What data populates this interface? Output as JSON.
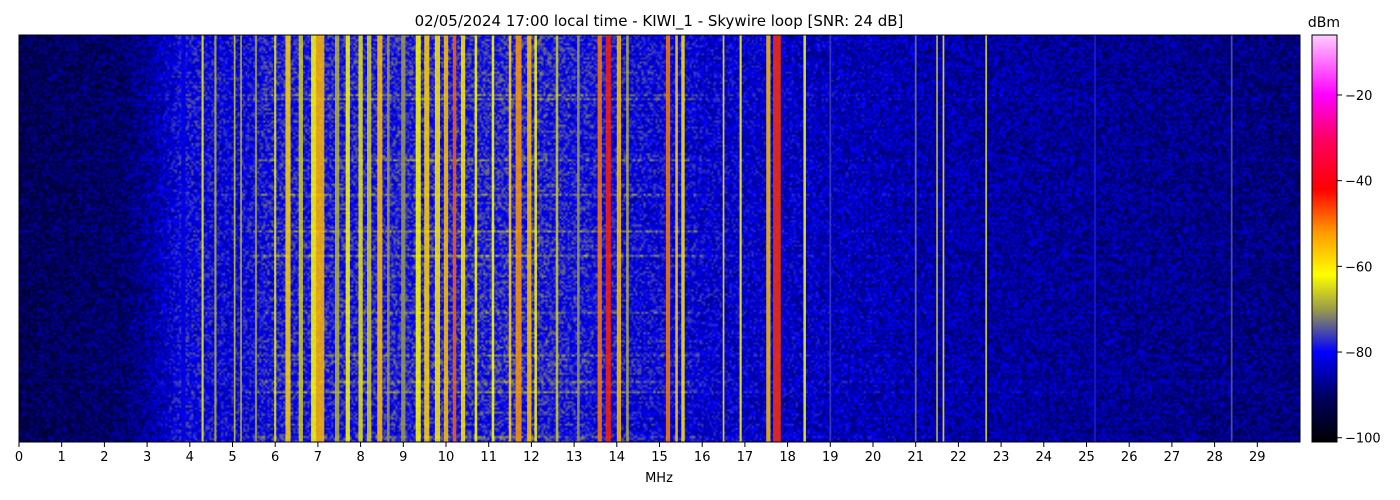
{
  "chart_data": {
    "type": "heatmap",
    "title": "02/05/2024 17:00 local time - KIWI_1 - Skywire loop [SNR: 24 dB]",
    "xlabel": "MHz",
    "ylabel": "",
    "xlim": [
      0,
      30
    ],
    "x_ticks": [
      0,
      1,
      2,
      3,
      4,
      5,
      6,
      7,
      8,
      9,
      10,
      11,
      12,
      13,
      14,
      15,
      16,
      17,
      18,
      19,
      20,
      21,
      22,
      23,
      24,
      25,
      26,
      27,
      28,
      29
    ],
    "colorbar": {
      "label": "dBm",
      "range": [
        -101,
        -6
      ],
      "ticks": [
        -20,
        -40,
        -60,
        -80,
        -100
      ],
      "colormap": [
        {
          "value": -101,
          "color": "#000000"
        },
        {
          "value": -90,
          "color": "#000066"
        },
        {
          "value": -80,
          "color": "#0000ff"
        },
        {
          "value": -70,
          "color": "#9a9a4a"
        },
        {
          "value": -62,
          "color": "#ffff00"
        },
        {
          "value": -52,
          "color": "#ff9900"
        },
        {
          "value": -42,
          "color": "#ff0000"
        },
        {
          "value": -30,
          "color": "#ff0066"
        },
        {
          "value": -20,
          "color": "#ff00ff"
        },
        {
          "value": -6,
          "color": "#ffccff"
        }
      ]
    },
    "background_profile": [
      {
        "mhz": 0,
        "dbm": -92
      },
      {
        "mhz": 2.5,
        "dbm": -90
      },
      {
        "mhz": 3.4,
        "dbm": -84
      },
      {
        "mhz": 3.8,
        "dbm": -80
      },
      {
        "mhz": 5,
        "dbm": -81
      },
      {
        "mhz": 6,
        "dbm": -79
      },
      {
        "mhz": 12,
        "dbm": -78
      },
      {
        "mhz": 16,
        "dbm": -82
      },
      {
        "mhz": 19,
        "dbm": -84
      },
      {
        "mhz": 22.7,
        "dbm": -86
      },
      {
        "mhz": 30,
        "dbm": -89
      }
    ],
    "signals": [
      {
        "mhz": 3.85,
        "width": 0.1,
        "dbm": -82
      },
      {
        "mhz": 4.3,
        "width": 0.05,
        "dbm": -63
      },
      {
        "mhz": 4.6,
        "width": 0.05,
        "dbm": -68
      },
      {
        "mhz": 5.05,
        "width": 0.04,
        "dbm": -66
      },
      {
        "mhz": 5.2,
        "width": 0.04,
        "dbm": -68
      },
      {
        "mhz": 5.55,
        "width": 0.05,
        "dbm": -70
      },
      {
        "mhz": 6.0,
        "width": 0.05,
        "dbm": -64
      },
      {
        "mhz": 6.3,
        "width": 0.12,
        "dbm": -58
      },
      {
        "mhz": 6.6,
        "width": 0.1,
        "dbm": -66
      },
      {
        "mhz": 6.9,
        "width": 0.12,
        "dbm": -62
      },
      {
        "mhz": 7.05,
        "width": 0.2,
        "dbm": -55
      },
      {
        "mhz": 7.45,
        "width": 0.1,
        "dbm": -68
      },
      {
        "mhz": 7.7,
        "width": 0.1,
        "dbm": -62
      },
      {
        "mhz": 8.0,
        "width": 0.1,
        "dbm": -64
      },
      {
        "mhz": 8.2,
        "width": 0.1,
        "dbm": -66
      },
      {
        "mhz": 8.45,
        "width": 0.12,
        "dbm": -56
      },
      {
        "mhz": 8.65,
        "width": 0.06,
        "dbm": -70
      },
      {
        "mhz": 9.0,
        "width": 0.1,
        "dbm": -70
      },
      {
        "mhz": 9.35,
        "width": 0.12,
        "dbm": -62
      },
      {
        "mhz": 9.55,
        "width": 0.12,
        "dbm": -58
      },
      {
        "mhz": 9.8,
        "width": 0.12,
        "dbm": -60
      },
      {
        "mhz": 10.0,
        "width": 0.1,
        "dbm": -56
      },
      {
        "mhz": 10.2,
        "width": 0.08,
        "dbm": -48
      },
      {
        "mhz": 10.4,
        "width": 0.1,
        "dbm": -60
      },
      {
        "mhz": 10.7,
        "width": 0.06,
        "dbm": -62
      },
      {
        "mhz": 11.1,
        "width": 0.06,
        "dbm": -62
      },
      {
        "mhz": 11.5,
        "width": 0.06,
        "dbm": -58
      },
      {
        "mhz": 11.7,
        "width": 0.14,
        "dbm": -52
      },
      {
        "mhz": 11.95,
        "width": 0.1,
        "dbm": -56
      },
      {
        "mhz": 12.1,
        "width": 0.06,
        "dbm": -62
      },
      {
        "mhz": 12.6,
        "width": 0.06,
        "dbm": -66
      },
      {
        "mhz": 13.1,
        "width": 0.06,
        "dbm": -70
      },
      {
        "mhz": 13.6,
        "width": 0.1,
        "dbm": -50
      },
      {
        "mhz": 13.8,
        "width": 0.12,
        "dbm": -44
      },
      {
        "mhz": 14.05,
        "width": 0.1,
        "dbm": -56
      },
      {
        "mhz": 14.25,
        "width": 0.06,
        "dbm": -68
      },
      {
        "mhz": 15.2,
        "width": 0.1,
        "dbm": -50
      },
      {
        "mhz": 15.4,
        "width": 0.06,
        "dbm": -58
      },
      {
        "mhz": 15.55,
        "width": 0.08,
        "dbm": -60
      },
      {
        "mhz": 16.5,
        "width": 0.04,
        "dbm": -60
      },
      {
        "mhz": 16.9,
        "width": 0.05,
        "dbm": -62
      },
      {
        "mhz": 17.55,
        "width": 0.1,
        "dbm": -56
      },
      {
        "mhz": 17.75,
        "width": 0.18,
        "dbm": -45
      },
      {
        "mhz": 18.4,
        "width": 0.06,
        "dbm": -62
      },
      {
        "mhz": 19.0,
        "width": 0.04,
        "dbm": -76
      },
      {
        "mhz": 21.0,
        "width": 0.04,
        "dbm": -72
      },
      {
        "mhz": 21.5,
        "width": 0.04,
        "dbm": -66
      },
      {
        "mhz": 21.65,
        "width": 0.04,
        "dbm": -60
      },
      {
        "mhz": 22.65,
        "width": 0.04,
        "dbm": -64
      },
      {
        "mhz": 25.2,
        "width": 0.04,
        "dbm": -78
      },
      {
        "mhz": 28.4,
        "width": 0.04,
        "dbm": -74
      }
    ]
  }
}
